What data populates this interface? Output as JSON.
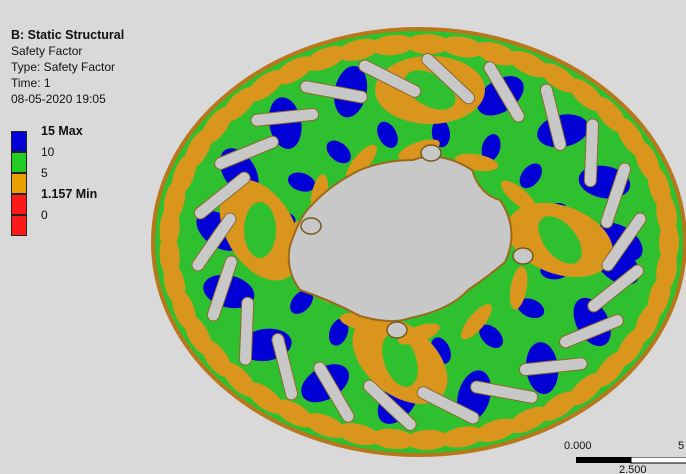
{
  "result_header": {
    "title": "B: Static Structural",
    "result": "Safety Factor",
    "type": "Type: Safety Factor",
    "time": "Time: 1",
    "date": "08-05-2020 19:05"
  },
  "legend": {
    "bands": [
      {
        "color": "#0000d6",
        "label": "15 Max",
        "bold": true
      },
      {
        "color": "#22cc22",
        "label": "10",
        "bold": false
      },
      {
        "color": "#e8a000",
        "label": "5",
        "bold": false
      },
      {
        "color": "#ff1a1a",
        "label": "1.157 Min",
        "bold": true
      },
      {
        "color": "#ff1a1a",
        "label": "0",
        "bold": false
      }
    ]
  },
  "scale_bar": {
    "left_label": "0.000",
    "mid_label": "2.500",
    "right_label": "5"
  },
  "colors": {
    "background": "#d9d9d9",
    "max_blue": "#0000d6",
    "green": "#2fc02f",
    "orange": "#d9951c",
    "min_red": "#ff1a1a",
    "slot_gray": "#c8c8c8"
  }
}
